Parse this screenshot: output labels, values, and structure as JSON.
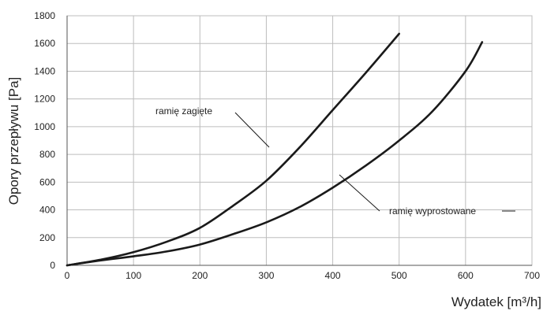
{
  "chart_data": {
    "type": "line",
    "title": "",
    "xlabel": "Wydatek [m³/h]",
    "ylabel": "Opory przepływu [Pa]",
    "xlim": [
      0,
      700
    ],
    "ylim": [
      0,
      1800
    ],
    "xticks": [
      "0",
      "100",
      "200",
      "300",
      "400",
      "500",
      "600",
      "700"
    ],
    "yticks": [
      "0",
      "200",
      "400",
      "600",
      "800",
      "1000",
      "1200",
      "1400",
      "1600",
      "1800"
    ],
    "grid": true,
    "series": [
      {
        "name": "ramię zagięte",
        "x": [
          0,
          50,
          100,
          150,
          200,
          250,
          300,
          350,
          400,
          450,
          500
        ],
        "y": [
          0,
          40,
          95,
          170,
          270,
          430,
          610,
          850,
          1120,
          1390,
          1670
        ]
      },
      {
        "name": "ramię wyprostowane",
        "x": [
          0,
          50,
          100,
          150,
          200,
          250,
          300,
          350,
          400,
          450,
          500,
          550,
          600,
          625
        ],
        "y": [
          0,
          35,
          65,
          100,
          150,
          225,
          310,
          420,
          560,
          720,
          900,
          1110,
          1400,
          1610
        ]
      }
    ],
    "annotations": [
      {
        "text": "ramię zagięte",
        "series": 0
      },
      {
        "text": "ramię wyprostowane",
        "series": 1
      }
    ]
  }
}
